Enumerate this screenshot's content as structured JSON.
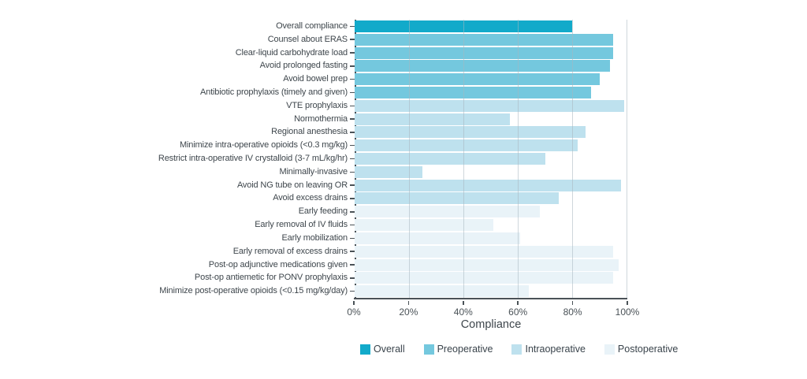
{
  "chart_data": {
    "type": "bar",
    "orientation": "horizontal",
    "title": "",
    "xlabel": "Compliance",
    "ylabel": "",
    "xlim": [
      0,
      100
    ],
    "x_tick_labels": [
      "0%",
      "20%",
      "40%",
      "60%",
      "80%",
      "100%"
    ],
    "gridlines": true,
    "legend_position": "bottom",
    "legend": [
      "Overall",
      "Preoperative",
      "Intraoperative",
      "Postoperative"
    ],
    "series_colors": {
      "Overall": "#12AACA",
      "Preoperative": "#74C8DE",
      "Intraoperative": "#BEE1EE",
      "Postoperative": "#E9F3F8"
    },
    "axis_color": "#4A5257",
    "bars": [
      {
        "label": "Overall compliance",
        "value": 80,
        "group": "Overall"
      },
      {
        "label": "Counsel about ERAS",
        "value": 95,
        "group": "Preoperative"
      },
      {
        "label": "Clear-liquid carbohydrate load",
        "value": 95,
        "group": "Preoperative"
      },
      {
        "label": "Avoid prolonged fasting",
        "value": 94,
        "group": "Preoperative"
      },
      {
        "label": "Avoid bowel prep",
        "value": 90,
        "group": "Preoperative"
      },
      {
        "label": "Antibiotic prophylaxis (timely and given)",
        "value": 87,
        "group": "Preoperative"
      },
      {
        "label": "VTE prophylaxis",
        "value": 99,
        "group": "Intraoperative"
      },
      {
        "label": "Normothermia",
        "value": 57,
        "group": "Intraoperative"
      },
      {
        "label": "Regional anesthesia",
        "value": 85,
        "group": "Intraoperative"
      },
      {
        "label": "Minimize intra-operative opioids (<0.3 mg/kg)",
        "value": 82,
        "group": "Intraoperative"
      },
      {
        "label": "Restrict intra-operative IV crystalloid (3-7 mL/kg/hr)",
        "value": 70,
        "group": "Intraoperative"
      },
      {
        "label": "Minimally-invasive",
        "value": 25,
        "group": "Intraoperative"
      },
      {
        "label": "Avoid NG tube on leaving OR",
        "value": 98,
        "group": "Intraoperative"
      },
      {
        "label": "Avoid excess drains",
        "value": 75,
        "group": "Intraoperative"
      },
      {
        "label": "Early feeding",
        "value": 68,
        "group": "Postoperative"
      },
      {
        "label": "Early removal of IV fluids",
        "value": 51,
        "group": "Postoperative"
      },
      {
        "label": "Early mobilization",
        "value": 61,
        "group": "Postoperative"
      },
      {
        "label": "Early removal of excess drains",
        "value": 95,
        "group": "Postoperative"
      },
      {
        "label": "Post-op adjunctive medications given",
        "value": 97,
        "group": "Postoperative"
      },
      {
        "label": "Post-op antiemetic for PONV prophylaxis",
        "value": 95,
        "group": "Postoperative"
      },
      {
        "label": "Minimize post-operative opioids (<0.15 mg/kg/day)",
        "value": 64,
        "group": "Postoperative"
      }
    ]
  }
}
